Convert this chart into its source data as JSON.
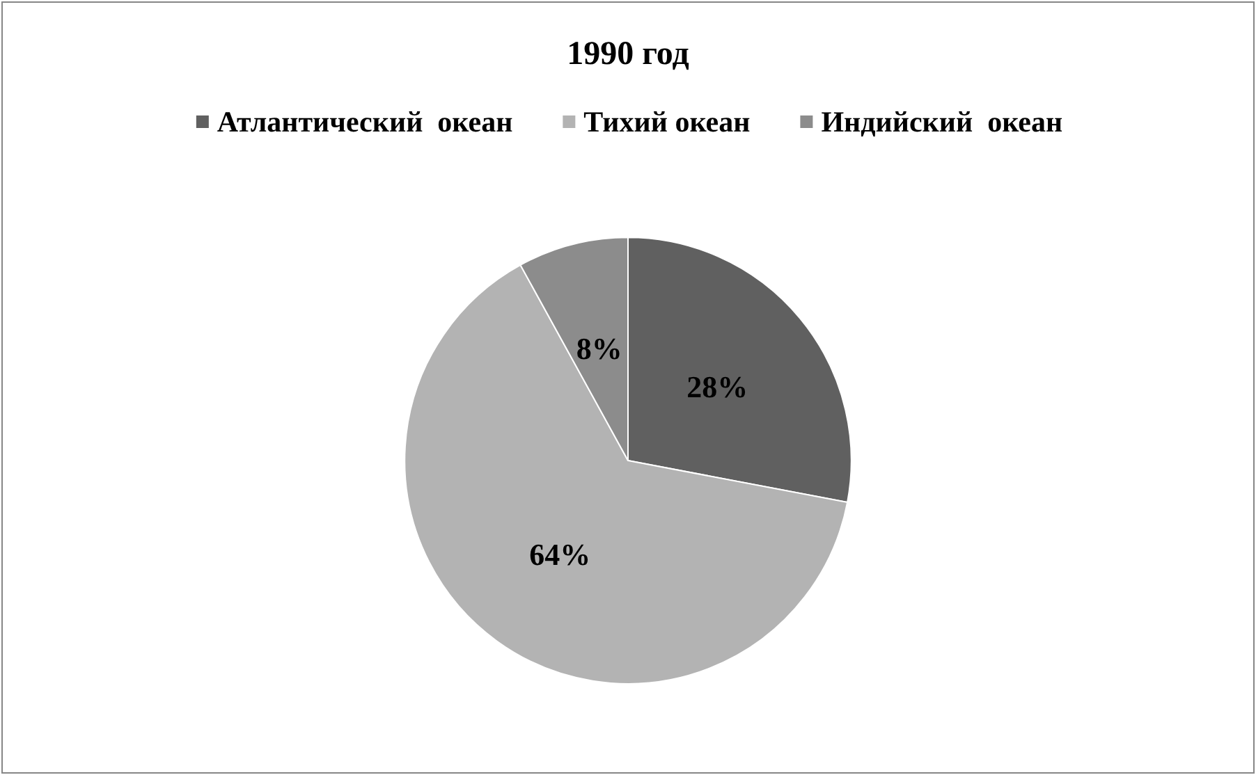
{
  "chart_data": {
    "type": "pie",
    "title": "1990 год",
    "categories": [
      "Атлантический  океан",
      "Тихий океан",
      "Индийский  океан"
    ],
    "values": [
      28,
      64,
      8
    ],
    "colors": [
      "#606060",
      "#b3b3b3",
      "#8c8c8c"
    ],
    "value_labels": [
      "28%",
      "64%",
      "8%"
    ],
    "legend": "top"
  }
}
